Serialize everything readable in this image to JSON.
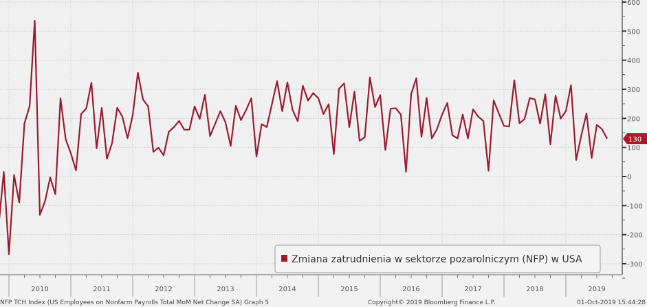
{
  "chart_data": {
    "type": "line",
    "title": "",
    "xlabel": "",
    "ylabel": "",
    "start_month": "2009-10",
    "frequency": "monthly",
    "ylim": [
      -300,
      600
    ],
    "y_ticks": [
      600,
      500,
      400,
      300,
      200,
      100,
      0,
      -100,
      -200,
      -300
    ],
    "y_axis_side": "right",
    "grid": true,
    "year_labels": [
      "2010",
      "2011",
      "2012",
      "2013",
      "2014",
      "2015",
      "2016",
      "2017",
      "2018",
      "2019"
    ],
    "series": [
      {
        "name": "Zmiana zatrudnienia w sektorze pozarolniczym (NFP) w USA",
        "color": "#9b1b30",
        "values": [
          -170,
          16,
          -267,
          5,
          -90,
          182,
          241,
          536,
          -132,
          -85,
          -3,
          -61,
          269,
          128,
          80,
          21,
          215,
          234,
          323,
          97,
          236,
          61,
          115,
          236,
          206,
          132,
          210,
          357,
          265,
          241,
          85,
          99,
          73,
          154,
          170,
          191,
          161,
          161,
          241,
          198,
          281,
          139,
          182,
          225,
          186,
          105,
          243,
          194,
          229,
          269,
          68,
          180,
          170,
          249,
          328,
          225,
          324,
          229,
          190,
          312,
          261,
          287,
          269,
          215,
          249,
          77,
          302,
          320,
          170,
          292,
          123,
          135,
          341,
          239,
          280,
          91,
          233,
          235,
          213,
          16,
          284,
          338,
          136,
          270,
          131,
          163,
          213,
          253,
          142,
          131,
          213,
          131,
          231,
          206,
          191,
          20,
          262,
          217,
          174,
          172,
          331,
          183,
          198,
          270,
          265,
          182,
          283,
          111,
          278,
          199,
          225,
          314,
          57,
          142,
          217,
          64,
          178,
          163,
          130
        ]
      }
    ],
    "last_value_label": "130",
    "legend": {
      "label": "Zmiana zatrudnienia w sektorze pozarolniczym (NFP) w USA",
      "position": "bottom-right"
    }
  },
  "footer": {
    "source": "NFP TCH Index (US Employees on Nonfarm Payrolls Total MoM Net Change SA) Graph 5",
    "copyright": "Copyright© 2019 Bloomberg Finance L.P.",
    "timestamp": "01-Oct-2019 15:44:28"
  }
}
